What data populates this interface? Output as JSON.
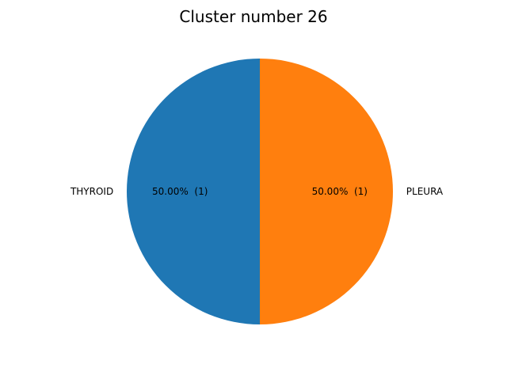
{
  "chart_data": {
    "type": "pie",
    "title": "Cluster number 26",
    "labels": [
      "THYROID",
      "PLEURA"
    ],
    "values": [
      1,
      1
    ],
    "percent_labels": [
      "50.00%  (1)",
      "50.00%  (1)"
    ],
    "colors": [
      "#1f77b4",
      "#ff7f0e"
    ],
    "start_angle_deg": 90,
    "direction": "counterclockwise"
  }
}
